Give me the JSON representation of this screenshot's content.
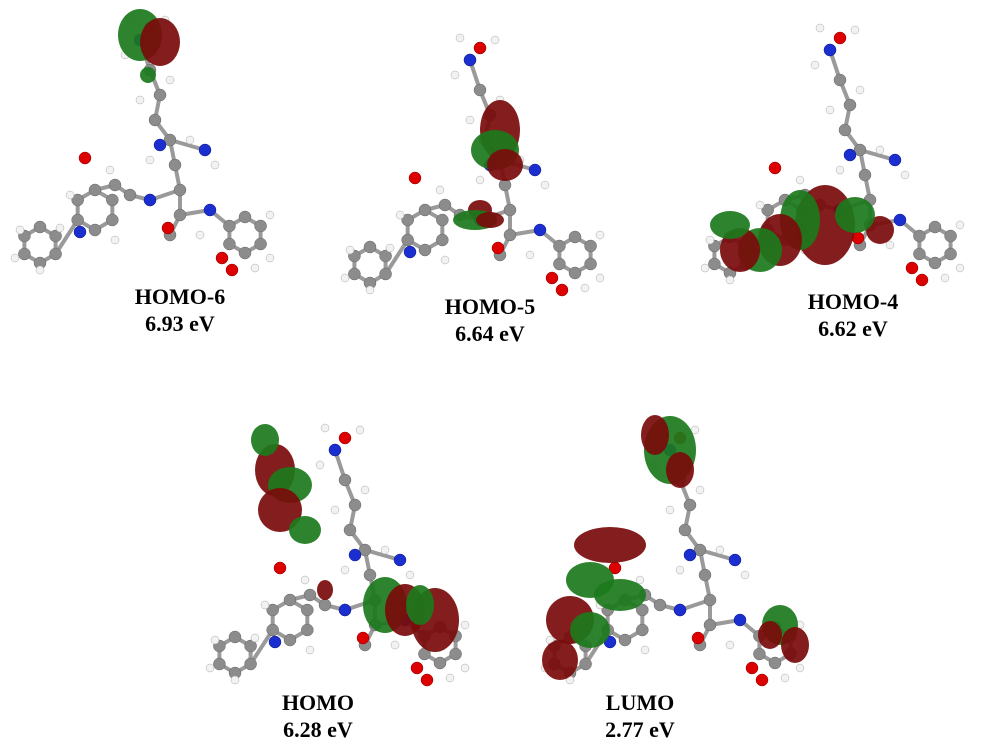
{
  "panels": [
    {
      "label": "HOMO-6",
      "energy": "6.93 eV"
    },
    {
      "label": "HOMO-5",
      "energy": "6.64 eV"
    },
    {
      "label": "HOMO-4",
      "energy": "6.62 eV"
    },
    {
      "label": "HOMO",
      "energy": "6.28 eV"
    },
    {
      "label": "LUMO",
      "energy": "2.77 eV"
    }
  ]
}
